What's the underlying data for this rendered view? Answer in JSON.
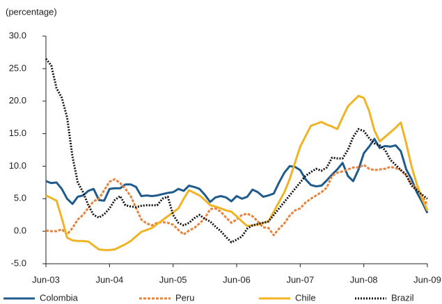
{
  "chart_data": {
    "type": "line",
    "y_label": "(percentage)",
    "categories": [
      "Jun-03",
      null,
      null,
      null,
      null,
      null,
      null,
      null,
      null,
      null,
      null,
      null,
      "Jun-04",
      null,
      null,
      null,
      null,
      null,
      null,
      null,
      null,
      null,
      null,
      null,
      "Jun-05",
      null,
      null,
      null,
      null,
      null,
      null,
      null,
      null,
      null,
      null,
      null,
      "Jun-06",
      null,
      null,
      null,
      null,
      null,
      null,
      null,
      null,
      null,
      null,
      null,
      "Jun-07",
      null,
      null,
      null,
      null,
      null,
      null,
      null,
      null,
      null,
      null,
      null,
      "Jun-08",
      null,
      null,
      null,
      null,
      null,
      null,
      null,
      null,
      null,
      null,
      null,
      "Jun-09"
    ],
    "ylim": [
      -5,
      30
    ],
    "yticks": [
      {
        "value": -5,
        "label": "-5.0"
      },
      {
        "value": 0,
        "label": "0.0"
      },
      {
        "value": 5,
        "label": "5.0"
      },
      {
        "value": 10,
        "label": "10.0"
      },
      {
        "value": 15,
        "label": "15.0"
      },
      {
        "value": 20,
        "label": "20.0"
      },
      {
        "value": 25,
        "label": "25.0"
      },
      {
        "value": 30,
        "label": "30.0"
      }
    ],
    "grid": false,
    "legend": "bottom",
    "series": [
      {
        "name": "Colombia",
        "color": "#1f5a8c",
        "style": "solid",
        "values": [
          7.7,
          7.4,
          7.5,
          6.5,
          5.0,
          4.2,
          5.3,
          5.5,
          6.2,
          6.5,
          4.8,
          4.7,
          6.5,
          6.6,
          6.6,
          7.2,
          7.2,
          6.8,
          5.4,
          5.5,
          5.4,
          5.5,
          5.7,
          5.9,
          6.0,
          6.5,
          6.2,
          7.0,
          6.8,
          6.5,
          5.6,
          4.5,
          5.2,
          5.4,
          5.2,
          4.6,
          5.4,
          5.0,
          5.3,
          6.4,
          6.0,
          5.3,
          5.5,
          5.8,
          7.5,
          9.0,
          10.0,
          9.9,
          9.4,
          8.0,
          7.1,
          6.9,
          7.0,
          7.8,
          8.7,
          9.5,
          10.5,
          8.5,
          7.7,
          9.5,
          12.0,
          13.0,
          14.2,
          12.8,
          13.1,
          13.0,
          13.2,
          12.3,
          9.5,
          8.0,
          6.0,
          4.5,
          2.8
        ]
      },
      {
        "name": "Peru",
        "color": "#e8823a",
        "style": "dashed",
        "values": [
          0.1,
          0,
          0,
          0.3,
          -0.5,
          0.5,
          1.8,
          2.5,
          3.6,
          4.6,
          5.0,
          6.3,
          7.6,
          8.0,
          7.4,
          6.5,
          5.4,
          3.6,
          1.8,
          1.2,
          0.9,
          1.3,
          1.4,
          1.3,
          1.0,
          0.2,
          -0.5,
          0.1,
          0.5,
          1.2,
          2.0,
          3.4,
          3.5,
          3.0,
          2.1,
          1.3,
          1.8,
          2.5,
          2.7,
          2.3,
          1.5,
          0.6,
          0.5,
          -0.6,
          0.4,
          1.2,
          2.4,
          3.2,
          3.5,
          4.4,
          5.0,
          5.5,
          6.0,
          6.7,
          8.5,
          9.0,
          9.2,
          9.5,
          9.8,
          9.8,
          10.2,
          9.6,
          9.4,
          9.5,
          9.6,
          9.9,
          9.7,
          9.4,
          8.5,
          7.2,
          6.5,
          5.5,
          4.0
        ]
      },
      {
        "name": "Chile",
        "color": "#f0b323",
        "style": "solid",
        "values": [
          5.5,
          5.1,
          4.7,
          2.0,
          -1.0,
          -1.4,
          -1.5,
          -1.5,
          -1.6,
          -2.2,
          -2.8,
          -2.9,
          -2.9,
          -2.8,
          -2.4,
          -2.0,
          -1.5,
          -0.8,
          -0.1,
          0.2,
          0.5,
          1.1,
          1.7,
          2.3,
          2.9,
          3.5,
          5.0,
          6.3,
          5.9,
          5.5,
          4.8,
          4.0,
          3.8,
          3.5,
          3.2,
          3.0,
          2.3,
          1.5,
          0.8,
          0.9,
          1.0,
          1.3,
          1.5,
          3.0,
          4.5,
          6.0,
          8.0,
          10.5,
          13.0,
          14.6,
          16.2,
          16.5,
          16.8,
          16.4,
          16.1,
          15.7,
          17.5,
          19.2,
          20.0,
          20.8,
          20.5,
          18.5,
          15.5,
          13.8,
          14.5,
          15.2,
          15.9,
          16.7,
          13.5,
          10.0,
          7.2,
          5.0,
          3.2
        ]
      },
      {
        "name": "Brazil",
        "color": "#111111",
        "style": "dotted",
        "values": [
          26.5,
          25.5,
          22,
          20.5,
          17.5,
          11.5,
          7.5,
          6,
          4,
          2.5,
          2.1,
          2.6,
          3.5,
          4.8,
          5.4,
          4.0,
          3.8,
          3.7,
          3.9,
          4.0,
          4.0,
          4.0,
          5.0,
          5.3,
          2.5,
          1.3,
          0.9,
          1.3,
          2.0,
          2.5,
          1.9,
          1.5,
          0.7,
          0.0,
          -0.9,
          -1.7,
          -1.3,
          -0.8,
          0.4,
          0.9,
          1.1,
          1.3,
          1.5,
          2.5,
          3.5,
          4.5,
          5.5,
          6.5,
          7.5,
          8.5,
          9.1,
          9.6,
          9.3,
          9.8,
          11.3,
          11.2,
          11.2,
          12.5,
          14.5,
          15.7,
          15.4,
          14.3,
          13.5,
          13.2,
          12.5,
          11.0,
          10.2,
          9.4,
          8.7,
          7.0,
          6.3,
          5.6,
          5.0
        ]
      }
    ]
  }
}
